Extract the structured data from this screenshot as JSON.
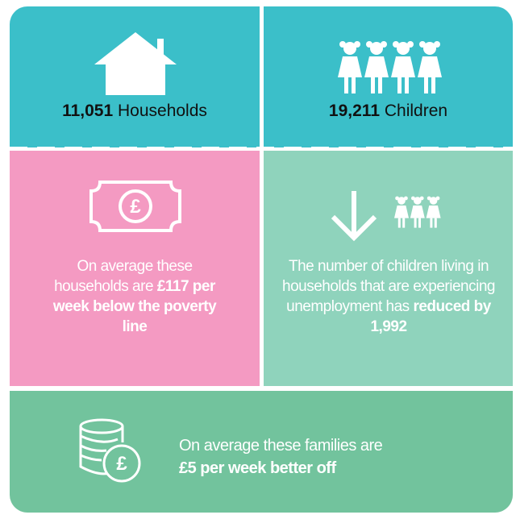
{
  "panels": [
    {
      "value": "11,051",
      "label": "Households"
    },
    {
      "value": "19,211",
      "label": "Children"
    },
    {
      "text": "On average these households are",
      "highlight": "£117 per week below the poverty line"
    },
    {
      "text": "The number of children living in households that are experiencing unemployment has",
      "highlight": "reduced by 1,992"
    },
    {
      "text": "On average these families are",
      "highlight": "£5 per week better off"
    }
  ]
}
